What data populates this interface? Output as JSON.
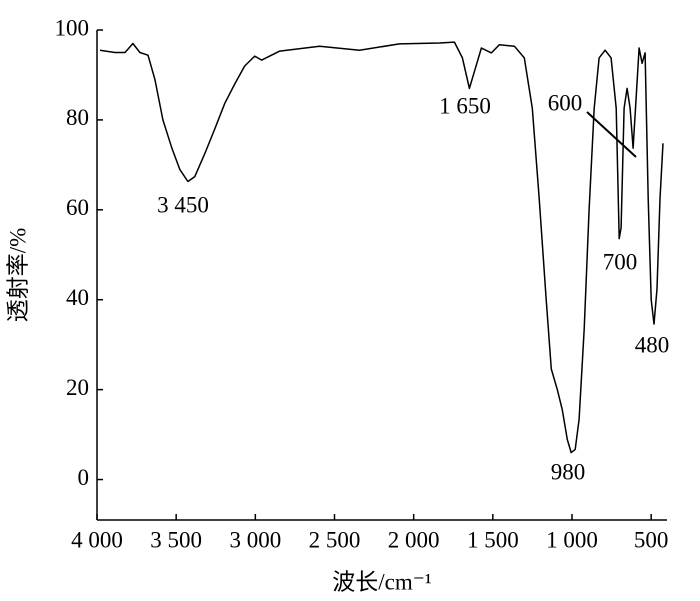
{
  "chart_data": {
    "type": "line",
    "y_label": "透射率/%",
    "x_label": "波长/cm⁻¹",
    "xlim": [
      4000,
      400
    ],
    "ylim": [
      -9,
      100
    ],
    "xticks": [
      {
        "value": 4000,
        "label": "4 000"
      },
      {
        "value": 3500,
        "label": "3 500"
      },
      {
        "value": 3000,
        "label": "3 000"
      },
      {
        "value": 2500,
        "label": "2 500"
      },
      {
        "value": 2000,
        "label": "2 000"
      },
      {
        "value": 1500,
        "label": "1 500"
      },
      {
        "value": 1000,
        "label": "1 000"
      },
      500
    ],
    "yticks": [
      0,
      20,
      40,
      60,
      80,
      100
    ],
    "annotations": [
      "3 450",
      "1 650",
      "980",
      "600",
      "700",
      "480"
    ],
    "series": [
      {
        "color": "#000000",
        "x": [
          3981,
          3887,
          3823,
          3773,
          3729,
          3678,
          3634,
          3584,
          3527,
          3477,
          3426,
          3382,
          3319,
          3256,
          3193,
          3130,
          3067,
          3004,
          2960,
          2846,
          2594,
          2342,
          2090,
          1837,
          1743,
          1692,
          1648,
          1610,
          1572,
          1509,
          1459,
          1364,
          1301,
          1251,
          1207,
          1163,
          1131,
          1093,
          1062,
          1030,
          1005,
          980,
          955,
          923,
          892,
          860,
          829,
          791,
          753,
          721,
          702,
          690,
          671,
          652,
          633,
          614,
          595,
          576,
          557,
          538,
          519,
          500,
          482,
          463,
          444,
          425
        ],
        "values": [
          95.5,
          95,
          95,
          97,
          95,
          94.4,
          89,
          80,
          73.7,
          69,
          66.3,
          67.4,
          72.5,
          78,
          83.7,
          88,
          92,
          94.2,
          93.3,
          95.3,
          96.4,
          95.5,
          96.9,
          97.1,
          97.3,
          93.8,
          87,
          91.5,
          96,
          94.9,
          96.7,
          96.4,
          93.8,
          82.6,
          62.5,
          40,
          24.6,
          20,
          15.6,
          8.9,
          6,
          6.7,
          13.4,
          33.5,
          60,
          82.6,
          93.8,
          95.5,
          93.8,
          82.6,
          53.6,
          56,
          82.6,
          87,
          82.6,
          73.7,
          84.8,
          96,
          92.6,
          94.9,
          62.5,
          40,
          34.6,
          42.4,
          62.5,
          74.8
        ]
      }
    ]
  }
}
